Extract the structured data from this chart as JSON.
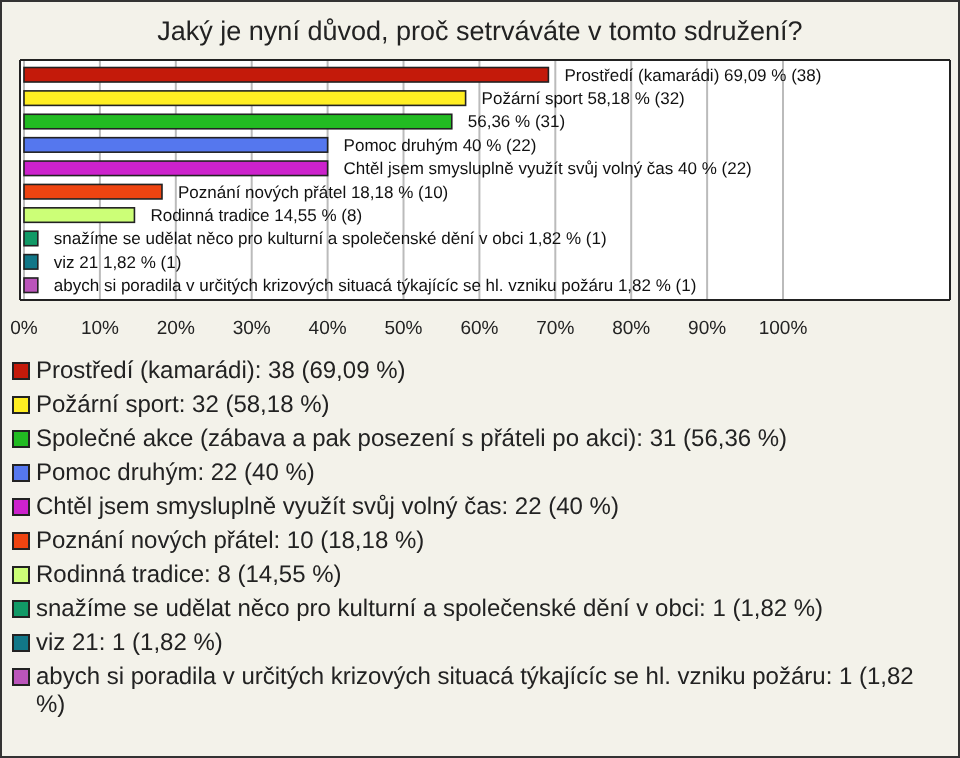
{
  "chart_data": {
    "type": "bar",
    "orientation": "horizontal",
    "stacked": true,
    "title": "Jaký je nyní důvod, proč setrváváte v tomto sdružení?",
    "categories": [
      null,
      null,
      null,
      null,
      null,
      null,
      null,
      null,
      null,
      null
    ],
    "series": [
      {
        "name": "Prostředí (kamarádi): 38 (69,09 %)",
        "color": "#c41a0a",
        "values": [
          69.09,
          null,
          null,
          null,
          null,
          null,
          null,
          null,
          null,
          null
        ],
        "value_labels": [
          "Prostředí (kamarádi) 69,09 % (38)",
          null,
          null,
          null,
          null,
          null,
          null,
          null,
          null,
          null
        ]
      },
      {
        "name": "Požární sport: 32 (58,18 %)",
        "color": "#ffee22",
        "values": [
          null,
          58.18,
          null,
          null,
          null,
          null,
          null,
          null,
          null,
          null
        ],
        "value_labels": [
          null,
          "Požární sport 58,18 % (32)",
          null,
          null,
          null,
          null,
          null,
          null,
          null,
          null
        ]
      },
      {
        "name": "Společné akce (zábava a pak posezení s přáteli po akci): 31 (56,36 %)",
        "color": "#22bb22",
        "values": [
          null,
          null,
          56.36,
          null,
          null,
          null,
          null,
          null,
          null,
          null
        ],
        "value_labels": [
          null,
          null,
          "56,36 % (31)",
          null,
          null,
          null,
          null,
          null,
          null,
          null
        ]
      },
      {
        "name": "Pomoc druhým: 22 (40 %)",
        "color": "#5577ee",
        "values": [
          null,
          null,
          null,
          40,
          null,
          null,
          null,
          null,
          null,
          null
        ],
        "value_labels": [
          null,
          null,
          null,
          "Pomoc druhým 40 % (22)",
          null,
          null,
          null,
          null,
          null,
          null
        ]
      },
      {
        "name": "Chtěl jsem smysluplně využít svůj volný čas: 22 (40 %)",
        "color": "#cc22cc",
        "values": [
          null,
          null,
          null,
          null,
          40,
          null,
          null,
          null,
          null,
          null
        ],
        "value_labels": [
          null,
          null,
          null,
          null,
          "Chtěl jsem smysluplně využít svůj volný čas 40 % (22)",
          null,
          null,
          null,
          null,
          null
        ]
      },
      {
        "name": "Poznání nových přátel: 10 (18,18 %)",
        "color": "#ee4411",
        "values": [
          null,
          null,
          null,
          null,
          null,
          18.18,
          null,
          null,
          null,
          null
        ],
        "value_labels": [
          null,
          null,
          null,
          null,
          null,
          "Poznání nových přátel 18,18 % (10)",
          null,
          null,
          null,
          null
        ]
      },
      {
        "name": "Rodinná tradice: 8 (14,55 %)",
        "color": "#ccff77",
        "values": [
          null,
          null,
          null,
          null,
          null,
          null,
          14.55,
          null,
          null,
          null
        ],
        "value_labels": [
          null,
          null,
          null,
          null,
          null,
          null,
          "Rodinná tradice 14,55 % (8)",
          null,
          null,
          null
        ]
      },
      {
        "name": "snažíme se udělat něco pro kulturní a společenské dění v obci: 1 (1,82 %)",
        "color": "#119966",
        "values": [
          null,
          null,
          null,
          null,
          null,
          null,
          null,
          1.82,
          null,
          null
        ],
        "value_labels": [
          null,
          null,
          null,
          null,
          null,
          null,
          null,
          "snažíme se udělat něco pro kulturní a společenské dění v obci 1,82 % (1)",
          null,
          null
        ]
      },
      {
        "name": "viz 21: 1 (1,82 %)",
        "color": "#117788",
        "values": [
          null,
          null,
          null,
          null,
          null,
          null,
          null,
          null,
          1.82,
          null
        ],
        "value_labels": [
          null,
          null,
          null,
          null,
          null,
          null,
          null,
          null,
          "viz 21 1,82 % (1)",
          null
        ]
      },
      {
        "name": "abych si poradila v určitých krizových situacá týkajícíc se hl. vzniku požáru: 1 (1,82 %)",
        "color": "#bb55bb",
        "values": [
          null,
          null,
          null,
          null,
          null,
          null,
          null,
          null,
          null,
          1.82
        ],
        "value_labels": [
          null,
          null,
          null,
          null,
          null,
          null,
          null,
          null,
          null,
          "abych si poradila v určitých krizových situacá týkajícíc se hl. vzniku požáru 1,82 % (1)"
        ]
      }
    ],
    "xlim": [
      0,
      122
    ],
    "xticks": [
      {
        "value": 0,
        "label": "0%"
      },
      {
        "value": 10,
        "label": "10%"
      },
      {
        "value": 20,
        "label": "20%"
      },
      {
        "value": 30,
        "label": "30%"
      },
      {
        "value": 40,
        "label": "40%"
      },
      {
        "value": 50,
        "label": "50%"
      },
      {
        "value": 60,
        "label": "60%"
      },
      {
        "value": 70,
        "label": "70%"
      },
      {
        "value": 80,
        "label": "80%"
      },
      {
        "value": 90,
        "label": "90%"
      },
      {
        "value": 100,
        "label": "100%"
      }
    ],
    "grid": "x",
    "legend": "bottom",
    "tick_labels": "x"
  }
}
